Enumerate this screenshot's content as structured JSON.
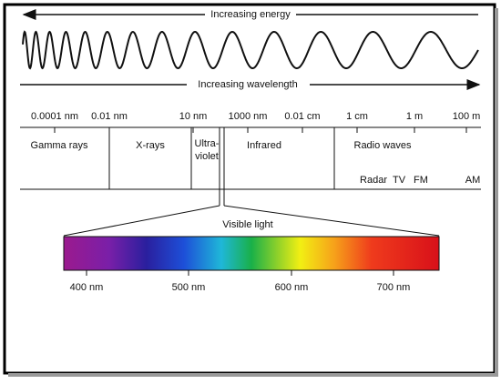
{
  "header": {
    "energy": "Increasing energy",
    "wavelength": "Increasing wavelength"
  },
  "scale": [
    "0.0001 nm",
    "0.01 nm",
    "10 nm",
    "1000 nm",
    "0.01 cm",
    "1 cm",
    "1 m",
    "100 m"
  ],
  "regions": {
    "gamma": "Gamma rays",
    "xrays": "X-rays",
    "ultraviolet": [
      "Ultra-",
      "violet"
    ],
    "infrared": "Infrared",
    "radio": "Radio waves"
  },
  "radio_bands": [
    "Radar",
    "TV",
    "FM",
    "AM"
  ],
  "visible": {
    "title": "Visible light",
    "ticks": [
      "400 nm",
      "500 nm",
      "600 nm",
      "700 nm"
    ]
  }
}
